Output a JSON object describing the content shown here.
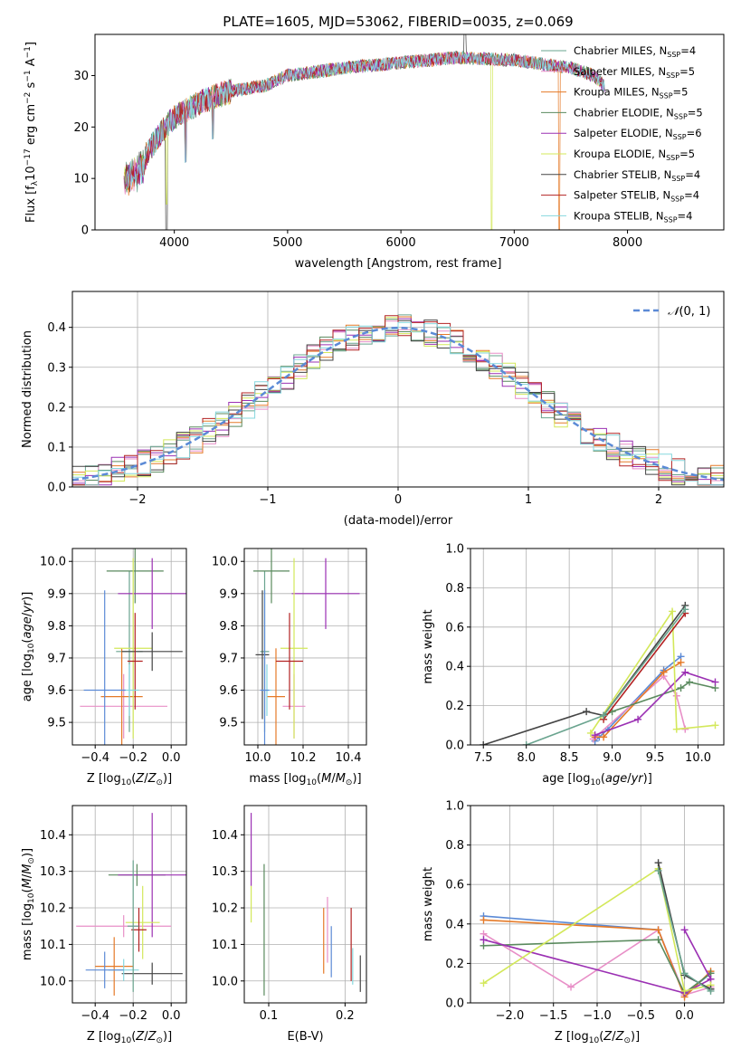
{
  "figure_title": "PLATE=1605, MJD=53062, FIBERID=0035, z=0.069",
  "colors": [
    "#6aa48f",
    "#e88fc7",
    "#e57a28",
    "#5a8a5e",
    "#9b30b3",
    "#d3e85a",
    "#444444",
    "#b22222",
    "#86d7de"
  ],
  "colors_named": {
    "cornflower": "#5b8ad6",
    "gaussian": "#5b8ad6"
  },
  "legend_labels": [
    {
      "main": "Chabrier MILES, N",
      "sub": "SSP",
      "tail": "=4"
    },
    {
      "main": "Salpeter MILES, N",
      "sub": "SSP",
      "tail": "=5"
    },
    {
      "main": "Kroupa MILES, N",
      "sub": "SSP",
      "tail": "=5"
    },
    {
      "main": "Chabrier ELODIE, N",
      "sub": "SSP",
      "tail": "=5"
    },
    {
      "main": "Salpeter ELODIE, N",
      "sub": "SSP",
      "tail": "=6"
    },
    {
      "main": "Kroupa ELODIE, N",
      "sub": "SSP",
      "tail": "=5"
    },
    {
      "main": "Chabrier STELIB, N",
      "sub": "SSP",
      "tail": "=4"
    },
    {
      "main": "Salpeter STELIB, N",
      "sub": "SSP",
      "tail": "=4"
    },
    {
      "main": "Kroupa STELIB, N",
      "sub": "SSP",
      "tail": "=4"
    }
  ],
  "chart_data": [
    {
      "type": "line",
      "panel": "spectrum",
      "xlabel": "wavelength [Angstrom, rest frame]",
      "ylabel": "Flux [f_λ10^-17 erg cm^-2 s^-1 A^-1]",
      "xlim": [
        3300,
        8850
      ],
      "ylim": [
        0,
        38
      ],
      "xticks": [
        4000,
        5000,
        6000,
        7000,
        8000
      ],
      "yticks": [
        0,
        10,
        20,
        30
      ],
      "continuum_x": [
        3550,
        3700,
        3850,
        4000,
        4250,
        4500,
        4800,
        5000,
        5500,
        6000,
        6500,
        7000,
        7500,
        7700,
        7800
      ],
      "continuum_y": [
        11,
        13,
        18,
        22,
        25,
        27,
        28,
        30,
        31.5,
        32.5,
        33.5,
        33,
        31.5,
        30,
        28
      ],
      "spikes": [
        [
          3933,
          -1
        ],
        [
          4100,
          8
        ],
        [
          4340,
          10
        ],
        [
          6800,
          0
        ],
        [
          7400,
          -1
        ],
        [
          6563,
          38
        ]
      ]
    },
    {
      "type": "bar",
      "panel": "residual-histogram",
      "xlabel": "(data-model)/error",
      "ylabel": "Normed distribution",
      "xlim": [
        -2.5,
        2.5
      ],
      "ylim": [
        0,
        0.49
      ],
      "xticks": [
        -2,
        -1,
        0,
        1,
        2
      ],
      "yticks": [
        0.0,
        0.1,
        0.2,
        0.3,
        0.4
      ],
      "legend": "N(0,1)",
      "bin_width": 0.1
    },
    {
      "type": "scatter",
      "panel": "age-vs-Z",
      "xlabel": "Z [log10(Z/Z☉)]",
      "ylabel": "age [log10(age/yr)]",
      "xlim": [
        -0.52,
        0.08
      ],
      "ylim": [
        9.43,
        10.04
      ],
      "xticks": [
        -0.4,
        -0.2,
        0.0
      ],
      "yticks": [
        9.5,
        9.6,
        9.7,
        9.8,
        9.9,
        10.0
      ],
      "points": [
        {
          "x": -0.22,
          "y": 9.72,
          "xerr": 0.07,
          "yerr": 0.25,
          "c": 0
        },
        {
          "x": -0.25,
          "y": 9.55,
          "xerr": 0.23,
          "yerr": 0.1,
          "c": 1
        },
        {
          "x": -0.26,
          "y": 9.58,
          "xerr": 0.11,
          "yerr": 0.15,
          "c": 2
        },
        {
          "x": -0.19,
          "y": 9.97,
          "xerr": 0.15,
          "yerr": 0.1,
          "c": 3
        },
        {
          "x": -0.1,
          "y": 9.9,
          "xerr": 0.18,
          "yerr": 0.11,
          "c": 4
        },
        {
          "x": -0.2,
          "y": 9.73,
          "xerr": 0.1,
          "yerr": 0.28,
          "c": 5
        },
        {
          "x": -0.1,
          "y": 9.72,
          "xerr": 0.16,
          "yerr": 0.06,
          "c": 6
        },
        {
          "x": -0.19,
          "y": 9.69,
          "xerr": 0.04,
          "yerr": 0.15,
          "c": 7
        },
        {
          "x": -0.22,
          "y": 9.6,
          "xerr": 0.05,
          "yerr": 0.08,
          "c": 8
        },
        {
          "x": -0.35,
          "y": 9.6,
          "xerr": 0.11,
          "yerr": 0.31,
          "c": 9
        }
      ]
    },
    {
      "type": "scatter",
      "panel": "age-vs-mass",
      "xlabel": "mass [log10(M/M☉)]",
      "ylabel": "",
      "xlim": [
        9.94,
        10.48
      ],
      "ylim": [
        9.43,
        10.04
      ],
      "xticks": [
        10.0,
        10.2,
        10.4
      ],
      "yticks": [
        9.5,
        9.6,
        9.7,
        9.8,
        9.9,
        10.0
      ],
      "points": [
        {
          "x": 10.03,
          "y": 9.72,
          "xerr": 0.02,
          "yerr": 0.25,
          "c": 0
        },
        {
          "x": 10.16,
          "y": 9.55,
          "xerr": 0.05,
          "yerr": 0.1,
          "c": 1
        },
        {
          "x": 10.08,
          "y": 9.58,
          "xerr": 0.04,
          "yerr": 0.15,
          "c": 2
        },
        {
          "x": 10.06,
          "y": 9.97,
          "xerr": 0.08,
          "yerr": 0.1,
          "c": 3
        },
        {
          "x": 10.3,
          "y": 9.9,
          "xerr": 0.15,
          "yerr": 0.11,
          "c": 4
        },
        {
          "x": 10.16,
          "y": 9.73,
          "xerr": 0.06,
          "yerr": 0.28,
          "c": 5
        },
        {
          "x": 10.02,
          "y": 9.71,
          "xerr": 0.03,
          "yerr": 0.2,
          "c": 6
        },
        {
          "x": 10.14,
          "y": 9.69,
          "xerr": 0.06,
          "yerr": 0.15,
          "c": 7
        },
        {
          "x": 10.04,
          "y": 9.6,
          "xerr": 0.02,
          "yerr": 0.08,
          "c": 8
        },
        {
          "x": 10.03,
          "y": 9.6,
          "xerr": 0.02,
          "yerr": 0.31,
          "c": 9
        }
      ]
    },
    {
      "type": "line",
      "panel": "mass-weight-vs-age",
      "xlabel": "age [log10(age/yr)]",
      "ylabel": "mass weight",
      "xlim": [
        7.35,
        10.3
      ],
      "ylim": [
        0,
        1
      ],
      "xticks": [
        7.5,
        8.0,
        8.5,
        9.0,
        9.5,
        10.0
      ],
      "yticks": [
        0.0,
        0.2,
        0.4,
        0.6,
        0.8,
        1.0
      ],
      "series": [
        {
          "c": 9,
          "x": [
            8.8,
            8.85,
            8.95,
            9.6,
            9.8
          ],
          "y": [
            0.02,
            0.04,
            0.08,
            0.38,
            0.45
          ]
        },
        {
          "c": 1,
          "x": [
            8.78,
            9.6,
            9.75,
            9.85
          ],
          "y": [
            0.03,
            0.35,
            0.25,
            0.08
          ]
        },
        {
          "c": 2,
          "x": [
            8.8,
            8.9,
            9.6,
            9.8
          ],
          "y": [
            0.04,
            0.04,
            0.37,
            0.42
          ]
        },
        {
          "c": 3,
          "x": [
            8.9,
            9.0,
            9.8,
            9.9,
            10.2
          ],
          "y": [
            0.15,
            0.17,
            0.29,
            0.32,
            0.29
          ]
        },
        {
          "c": 4,
          "x": [
            8.8,
            9.3,
            9.85,
            10.2
          ],
          "y": [
            0.05,
            0.13,
            0.37,
            0.32
          ]
        },
        {
          "c": 5,
          "x": [
            8.75,
            9.7,
            9.75,
            10.2
          ],
          "y": [
            0.06,
            0.68,
            0.08,
            0.1
          ]
        },
        {
          "c": 6,
          "x": [
            7.5,
            8.7,
            8.9,
            9.85
          ],
          "y": [
            0.0,
            0.17,
            0.15,
            0.71
          ]
        },
        {
          "c": 7,
          "x": [
            8.9,
            9.85
          ],
          "y": [
            0.13,
            0.67
          ]
        },
        {
          "c": 0,
          "x": [
            8.0,
            8.9,
            9.85
          ],
          "y": [
            0.0,
            0.15,
            0.69
          ]
        }
      ]
    },
    {
      "type": "scatter",
      "panel": "mass-vs-Z",
      "xlabel": "Z [log10(Z/Z☉)]",
      "ylabel": "mass [log10(M/M☉)]",
      "xlim": [
        -0.52,
        0.08
      ],
      "ylim": [
        9.94,
        10.48
      ],
      "xticks": [
        -0.4,
        -0.2,
        0.0
      ],
      "yticks": [
        10.0,
        10.1,
        10.2,
        10.3,
        10.4
      ],
      "points": [
        {
          "x": -0.25,
          "y": 10.15,
          "xerr": 0.25,
          "yerr": 0.03,
          "c": 1
        },
        {
          "x": -0.3,
          "y": 10.04,
          "xerr": 0.1,
          "yerr": 0.08,
          "c": 2
        },
        {
          "x": -0.18,
          "y": 10.29,
          "xerr": 0.15,
          "yerr": 0.03,
          "c": 3
        },
        {
          "x": -0.1,
          "y": 10.29,
          "xerr": 0.18,
          "yerr": 0.17,
          "c": 4
        },
        {
          "x": -0.15,
          "y": 10.16,
          "xerr": 0.09,
          "yerr": 0.1,
          "c": 5
        },
        {
          "x": -0.1,
          "y": 10.02,
          "xerr": 0.16,
          "yerr": 0.03,
          "c": 6
        },
        {
          "x": -0.17,
          "y": 10.14,
          "xerr": 0.04,
          "yerr": 0.06,
          "c": 7
        },
        {
          "x": -0.25,
          "y": 10.03,
          "xerr": 0.08,
          "yerr": 0.03,
          "c": 8
        },
        {
          "x": -0.35,
          "y": 10.03,
          "xerr": 0.1,
          "yerr": 0.05,
          "c": 9
        },
        {
          "x": -0.2,
          "y": 10.15,
          "xerr": 0.03,
          "yerr": 0.18,
          "c": 0
        }
      ]
    },
    {
      "type": "scatter",
      "panel": "mass-vs-EBV",
      "xlabel": "E(B-V)",
      "ylabel": "",
      "xlim": [
        0.068,
        0.228
      ],
      "ylim": [
        9.94,
        10.48
      ],
      "xticks": [
        0.1,
        0.2
      ],
      "points": [
        {
          "x": 0.077,
          "y": 10.36,
          "yerr": 0.1,
          "c": 4
        },
        {
          "x": 0.077,
          "y": 10.21,
          "yerr": 0.05,
          "c": 5
        },
        {
          "x": 0.094,
          "y": 10.14,
          "yerr": 0.18,
          "c": 3
        },
        {
          "x": 0.172,
          "y": 10.11,
          "yerr": 0.09,
          "c": 2
        },
        {
          "x": 0.177,
          "y": 10.14,
          "yerr": 0.09,
          "c": 1
        },
        {
          "x": 0.182,
          "y": 10.08,
          "yerr": 0.07,
          "c": 9
        },
        {
          "x": 0.208,
          "y": 10.1,
          "yerr": 0.1,
          "c": 7
        },
        {
          "x": 0.21,
          "y": 10.04,
          "yerr": 0.05,
          "c": 8
        },
        {
          "x": 0.22,
          "y": 10.02,
          "yerr": 0.05,
          "c": 6
        }
      ]
    },
    {
      "type": "line",
      "panel": "mass-weight-vs-Z",
      "xlabel": "Z [log10(Z/Z☉)]",
      "ylabel": "mass weight",
      "xlim": [
        -2.45,
        0.45
      ],
      "ylim": [
        0,
        1
      ],
      "xticks": [
        -2.0,
        -1.5,
        -1.0,
        -0.5,
        0.0
      ],
      "yticks": [
        0.0,
        0.2,
        0.4,
        0.6,
        0.8,
        1.0
      ],
      "series": [
        {
          "c": 9,
          "x": [
            -2.3,
            -0.3,
            0.0,
            0.3
          ],
          "y": [
            0.44,
            0.37,
            0.04,
            0.15
          ]
        },
        {
          "c": 1,
          "x": [
            -2.3,
            -1.3,
            -0.3,
            0.0,
            0.3
          ],
          "y": [
            0.35,
            0.08,
            0.37,
            0.04,
            0.08
          ]
        },
        {
          "c": 2,
          "x": [
            -2.3,
            -0.3,
            0.0,
            0.3
          ],
          "y": [
            0.42,
            0.37,
            0.03,
            0.16
          ]
        },
        {
          "c": 3,
          "x": [
            -2.3,
            -0.3,
            0.0,
            0.3
          ],
          "y": [
            0.29,
            0.32,
            0.05,
            0.15
          ]
        },
        {
          "c": 4,
          "x": [
            -2.3,
            0.0,
            0.3
          ],
          "y": [
            0.32,
            0.05,
            0.12
          ]
        },
        {
          "c": 4,
          "x": [
            0.0,
            0.3
          ],
          "y": [
            0.37,
            0.12
          ]
        },
        {
          "c": 5,
          "x": [
            -2.3,
            -0.3,
            0.0,
            0.3
          ],
          "y": [
            0.1,
            0.68,
            0.06,
            0.09
          ]
        },
        {
          "c": 6,
          "x": [
            -0.3,
            0.0,
            0.3
          ],
          "y": [
            0.71,
            0.14,
            0.07
          ]
        },
        {
          "c": 0,
          "x": [
            -0.3,
            0.0,
            0.3
          ],
          "y": [
            0.67,
            0.15,
            0.06
          ]
        }
      ]
    }
  ]
}
